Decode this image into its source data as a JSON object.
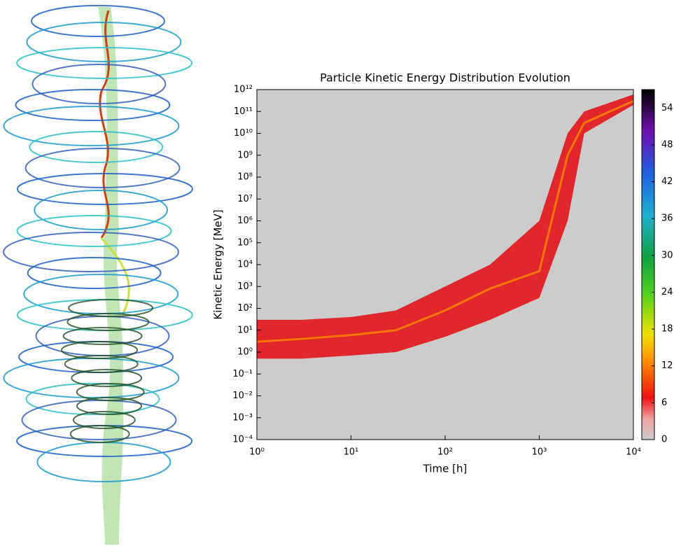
{
  "chart_data": {
    "type": "band",
    "title": "Particle Kinetic Energy Distribution Evolution",
    "xlabel": "Time [h]",
    "ylabel": "Kinetic Energy [MeV]",
    "log_x": true,
    "log_y": true,
    "xlim": [
      1,
      10000
    ],
    "xticks": [
      {
        "value": 1,
        "label": "10⁰"
      },
      {
        "value": 10,
        "label": "10¹"
      },
      {
        "value": 100,
        "label": "10²"
      },
      {
        "value": 1000,
        "label": "10³"
      },
      {
        "value": 10000,
        "label": "10⁴"
      }
    ],
    "ylim": [
      0.0001,
      1000000000000
    ],
    "yticks": [
      {
        "value": 0.0001,
        "label": "10⁻⁴"
      },
      {
        "value": 0.001,
        "label": "10⁻³"
      },
      {
        "value": 0.01,
        "label": "10⁻²"
      },
      {
        "value": 0.1,
        "label": "10⁻¹"
      },
      {
        "value": 1,
        "label": "10⁰"
      },
      {
        "value": 10,
        "label": "10¹"
      },
      {
        "value": 100,
        "label": "10²"
      },
      {
        "value": 1000,
        "label": "10³"
      },
      {
        "value": 10000,
        "label": "10⁴"
      },
      {
        "value": 100000,
        "label": "10⁵"
      },
      {
        "value": 1000000,
        "label": "10⁶"
      },
      {
        "value": 10000000,
        "label": "10⁷"
      },
      {
        "value": 100000000,
        "label": "10⁸"
      },
      {
        "value": 1000000000,
        "label": "10⁹"
      },
      {
        "value": 10000000000,
        "label": "10¹⁰"
      },
      {
        "value": 100000000000,
        "label": "10¹¹"
      },
      {
        "value": 1000000000000,
        "label": "10¹²"
      }
    ],
    "x": [
      1,
      3,
      10,
      30,
      100,
      300,
      1000,
      2000,
      3000,
      10000
    ],
    "low": [
      0.5,
      0.5,
      0.7,
      1,
      5,
      30,
      300,
      1000000,
      10000000000,
      200000000000
    ],
    "high": [
      30,
      30,
      40,
      80,
      1000,
      10000,
      1000000,
      10000000000,
      100000000000,
      600000000000
    ],
    "peak": [
      3,
      4,
      6,
      10,
      80,
      800,
      5000,
      1000000000,
      30000000000,
      300000000000
    ],
    "band_color": "#e3151a",
    "peak_color": "#ff8c00",
    "background": "#cccccc",
    "colorbar": {
      "lim": [
        0,
        57
      ],
      "ticks": [
        0,
        6,
        12,
        18,
        24,
        30,
        36,
        42,
        48,
        54
      ]
    }
  }
}
